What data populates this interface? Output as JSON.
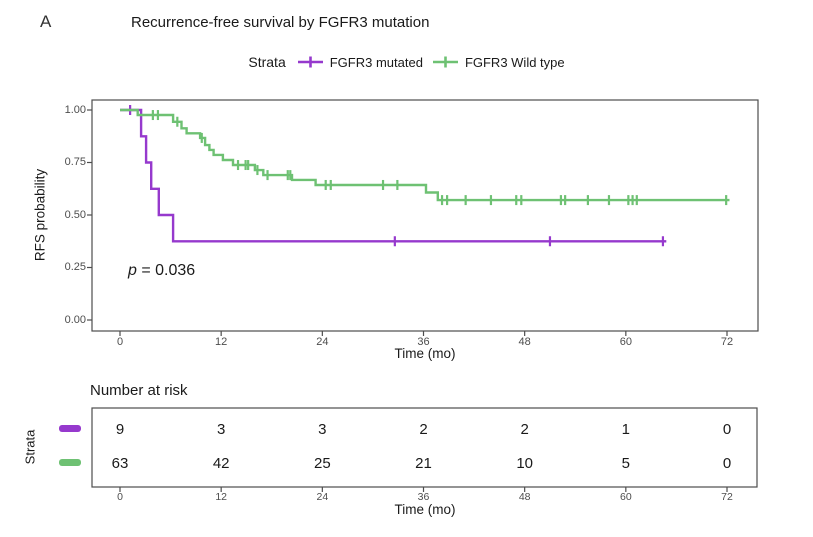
{
  "panel_label": "A",
  "title": "Recurrence-free survival by FGFR3 mutation",
  "legend": {
    "title": "Strata",
    "items": [
      {
        "label": "FGFR3 mutated",
        "color": "#9639CD",
        "key_icon": "plus-line-icon"
      },
      {
        "label": "FGFR3 Wild type",
        "color": "#6EC173",
        "key_icon": "plus-line-icon"
      }
    ]
  },
  "axes": {
    "y_label": "RFS probability",
    "x_label": "Time (mo)",
    "y_ticks": [
      "1.00",
      "0.75",
      "0.50",
      "0.25",
      "0.00"
    ],
    "x_ticks": [
      "0",
      "12",
      "24",
      "36",
      "48",
      "60",
      "72"
    ]
  },
  "annotation": {
    "p_prefix": "p",
    "p_rest": " = 0.036"
  },
  "risk_table": {
    "title": "Number at risk",
    "axis_label": "Strata",
    "x_label": "Time (mo)",
    "x_ticks": [
      "0",
      "12",
      "24",
      "36",
      "48",
      "60",
      "72"
    ],
    "rows": [
      {
        "name": "FGFR3 mutated",
        "color": "#9639CD",
        "counts": [
          "9",
          "3",
          "3",
          "2",
          "2",
          "1",
          "0"
        ]
      },
      {
        "name": "FGFR3 Wild type",
        "color": "#6EC173",
        "counts": [
          "63",
          "42",
          "25",
          "21",
          "10",
          "5",
          "0"
        ]
      }
    ]
  },
  "chart_data": {
    "type": "line",
    "subtype": "kaplan-meier-step",
    "title": "Recurrence-free survival by FGFR3 mutation",
    "xlabel": "Time (mo)",
    "ylabel": "RFS probability",
    "xlim": [
      0,
      72
    ],
    "ylim": [
      0,
      1
    ],
    "x_ticks": [
      0,
      12,
      24,
      36,
      48,
      60,
      72
    ],
    "y_ticks": [
      0,
      0.25,
      0.5,
      0.75,
      1.0
    ],
    "grid": false,
    "legend_position": "top",
    "p_value": 0.036,
    "series": [
      {
        "name": "FGFR3 mutated",
        "color": "#9639CD",
        "steps": [
          [
            0,
            1.0
          ],
          [
            2.5,
            0.875
          ],
          [
            3.1,
            0.75
          ],
          [
            3.7,
            0.625
          ],
          [
            4.6,
            0.5
          ],
          [
            6.3,
            0.375
          ]
        ],
        "end_time": 64.8,
        "censors": [
          [
            1.2,
            1.0
          ],
          [
            32.6,
            0.375
          ],
          [
            51.0,
            0.375
          ],
          [
            64.4,
            0.375
          ]
        ]
      },
      {
        "name": "FGFR3 Wild type",
        "color": "#6EC173",
        "steps": [
          [
            0,
            1.0
          ],
          [
            2.1,
            0.976
          ],
          [
            6.3,
            0.944
          ],
          [
            7.3,
            0.913
          ],
          [
            7.9,
            0.889
          ],
          [
            9.5,
            0.867
          ],
          [
            10.1,
            0.833
          ],
          [
            10.6,
            0.81
          ],
          [
            11.1,
            0.786
          ],
          [
            12.2,
            0.762
          ],
          [
            13.4,
            0.738
          ],
          [
            16.0,
            0.714
          ],
          [
            17.0,
            0.69
          ],
          [
            20.4,
            0.667
          ],
          [
            23.2,
            0.643
          ],
          [
            36.3,
            0.607
          ],
          [
            37.7,
            0.571
          ]
        ],
        "end_time": 72.3,
        "censors": [
          [
            3.9,
            0.976
          ],
          [
            4.5,
            0.976
          ],
          [
            6.8,
            0.944
          ],
          [
            9.7,
            0.867
          ],
          [
            14.0,
            0.738
          ],
          [
            14.9,
            0.738
          ],
          [
            15.2,
            0.738
          ],
          [
            16.3,
            0.714
          ],
          [
            17.5,
            0.69
          ],
          [
            19.9,
            0.69
          ],
          [
            20.2,
            0.69
          ],
          [
            24.4,
            0.643
          ],
          [
            25.0,
            0.643
          ],
          [
            31.2,
            0.643
          ],
          [
            32.9,
            0.643
          ],
          [
            38.2,
            0.571
          ],
          [
            38.8,
            0.571
          ],
          [
            41.0,
            0.571
          ],
          [
            44.0,
            0.571
          ],
          [
            47.0,
            0.571
          ],
          [
            47.6,
            0.571
          ],
          [
            52.3,
            0.571
          ],
          [
            52.8,
            0.571
          ],
          [
            55.5,
            0.571
          ],
          [
            58.0,
            0.571
          ],
          [
            60.3,
            0.571
          ],
          [
            60.8,
            0.571
          ],
          [
            61.3,
            0.571
          ],
          [
            71.9,
            0.571
          ]
        ]
      }
    ],
    "number_at_risk": {
      "times": [
        0,
        12,
        24,
        36,
        48,
        60,
        72
      ],
      "FGFR3 mutated": [
        9,
        3,
        3,
        2,
        2,
        1,
        0
      ],
      "FGFR3 Wild type": [
        63,
        42,
        25,
        21,
        10,
        5,
        0
      ]
    }
  }
}
